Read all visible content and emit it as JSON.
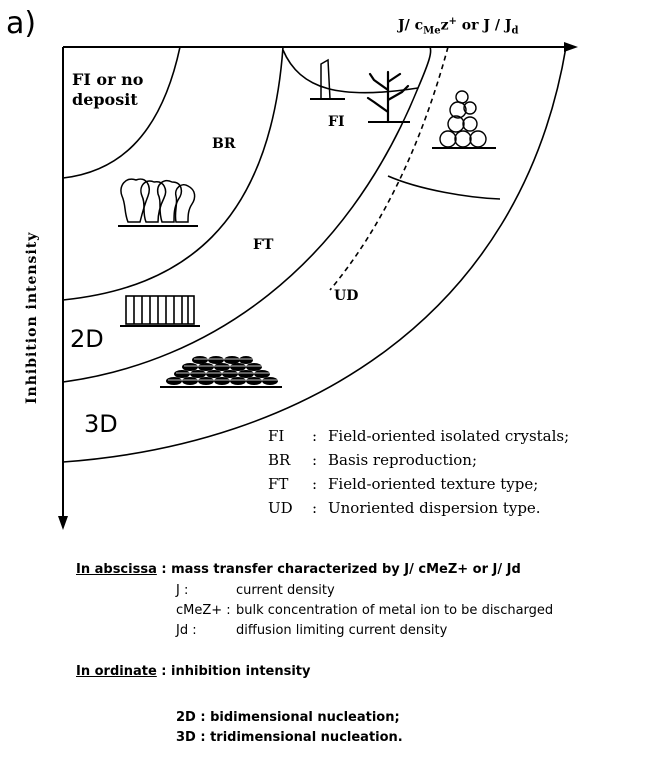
{
  "panel_label": "a)",
  "axes": {
    "x_label": "J/ cMeZ+ or J / Jd",
    "y_label": "Inhibition intensity"
  },
  "regions": {
    "fi_or_no_deposit": "FI or no deposit",
    "br": "BR",
    "ft": "FT",
    "ud": "UD",
    "fi": "FI",
    "two_d": "2D",
    "three_d": "3D"
  },
  "legend": [
    {
      "code": "FI",
      "text": "Field-oriented isolated crystals;"
    },
    {
      "code": "BR",
      "text": "Basis reproduction;"
    },
    {
      "code": "FT",
      "text": "Field-oriented texture type;"
    },
    {
      "code": "UD",
      "text": "Unoriented dispersion type."
    }
  ],
  "abscissa": {
    "label": "In abscissa",
    "desc": "mass transfer characterized by J/ cMeZ+ or J/ Jd",
    "defs": [
      {
        "sym": "J :",
        "text": "current density"
      },
      {
        "sym": "cMeZ+ :",
        "text": "bulk concentration of metal ion to be discharged"
      },
      {
        "sym": "Jd :",
        "text": "diffusion limiting current density"
      }
    ]
  },
  "ordinate": {
    "label": "In ordinate",
    "desc": "inhibition intensity"
  },
  "nucleation": [
    "2D : bidimensional nucleation;",
    "3D : tridimensional nucleation."
  ]
}
